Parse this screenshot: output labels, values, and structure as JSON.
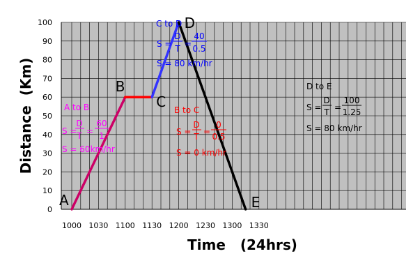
{
  "chart_data": {
    "type": "line",
    "xlabel": "Time   (24hrs)",
    "ylabel": "Distance  (Km)",
    "x_ticks": [
      "1000",
      "1030",
      "1100",
      "1130",
      "1200",
      "1230",
      "1300",
      "1330"
    ],
    "y_ticks": [
      0,
      10,
      20,
      30,
      40,
      50,
      60,
      70,
      80,
      90,
      100
    ],
    "xlim_minutes": [
      0,
      375
    ],
    "ylim": [
      0,
      100
    ],
    "grid": true,
    "background": "#c0c0c0",
    "points": [
      {
        "label": "A",
        "time": "1000",
        "distance": 0
      },
      {
        "label": "B",
        "time": "1100",
        "distance": 60
      },
      {
        "label": "C",
        "time": "1130",
        "distance": 60
      },
      {
        "label": "D",
        "time": "1200",
        "distance": 100
      },
      {
        "label": "E",
        "time": "1315",
        "distance": 0
      }
    ],
    "segments": [
      {
        "from": "A",
        "to": "B",
        "color": "#cc0066"
      },
      {
        "from": "B",
        "to": "C",
        "color": "#ff0000"
      },
      {
        "from": "C",
        "to": "D",
        "color": "#3333ff"
      },
      {
        "from": "D",
        "to": "E",
        "color": "#000000"
      }
    ],
    "annotations": [
      {
        "id": "ab",
        "color": "#ff00ff",
        "title": "A to B",
        "d": "D",
        "t": "T",
        "num": "60",
        "den": "1",
        "result": "S = 60km/hr"
      },
      {
        "id": "bc",
        "color": "#ff0000",
        "title": "B to C",
        "d": "D",
        "t": "T",
        "num": "0",
        "den": "0.5",
        "result": "S = 0 km/hr"
      },
      {
        "id": "cd",
        "color": "#0000ff",
        "title": "C to D",
        "d": "D",
        "t": "T",
        "num": "40",
        "den": "0.5",
        "result": "S = 80 km/hr"
      },
      {
        "id": "de",
        "color": "#000000",
        "title": "D to E",
        "d": "D",
        "t": "T",
        "num": "100",
        "den": "1.25",
        "result": "S = 80 km/hr"
      }
    ]
  }
}
